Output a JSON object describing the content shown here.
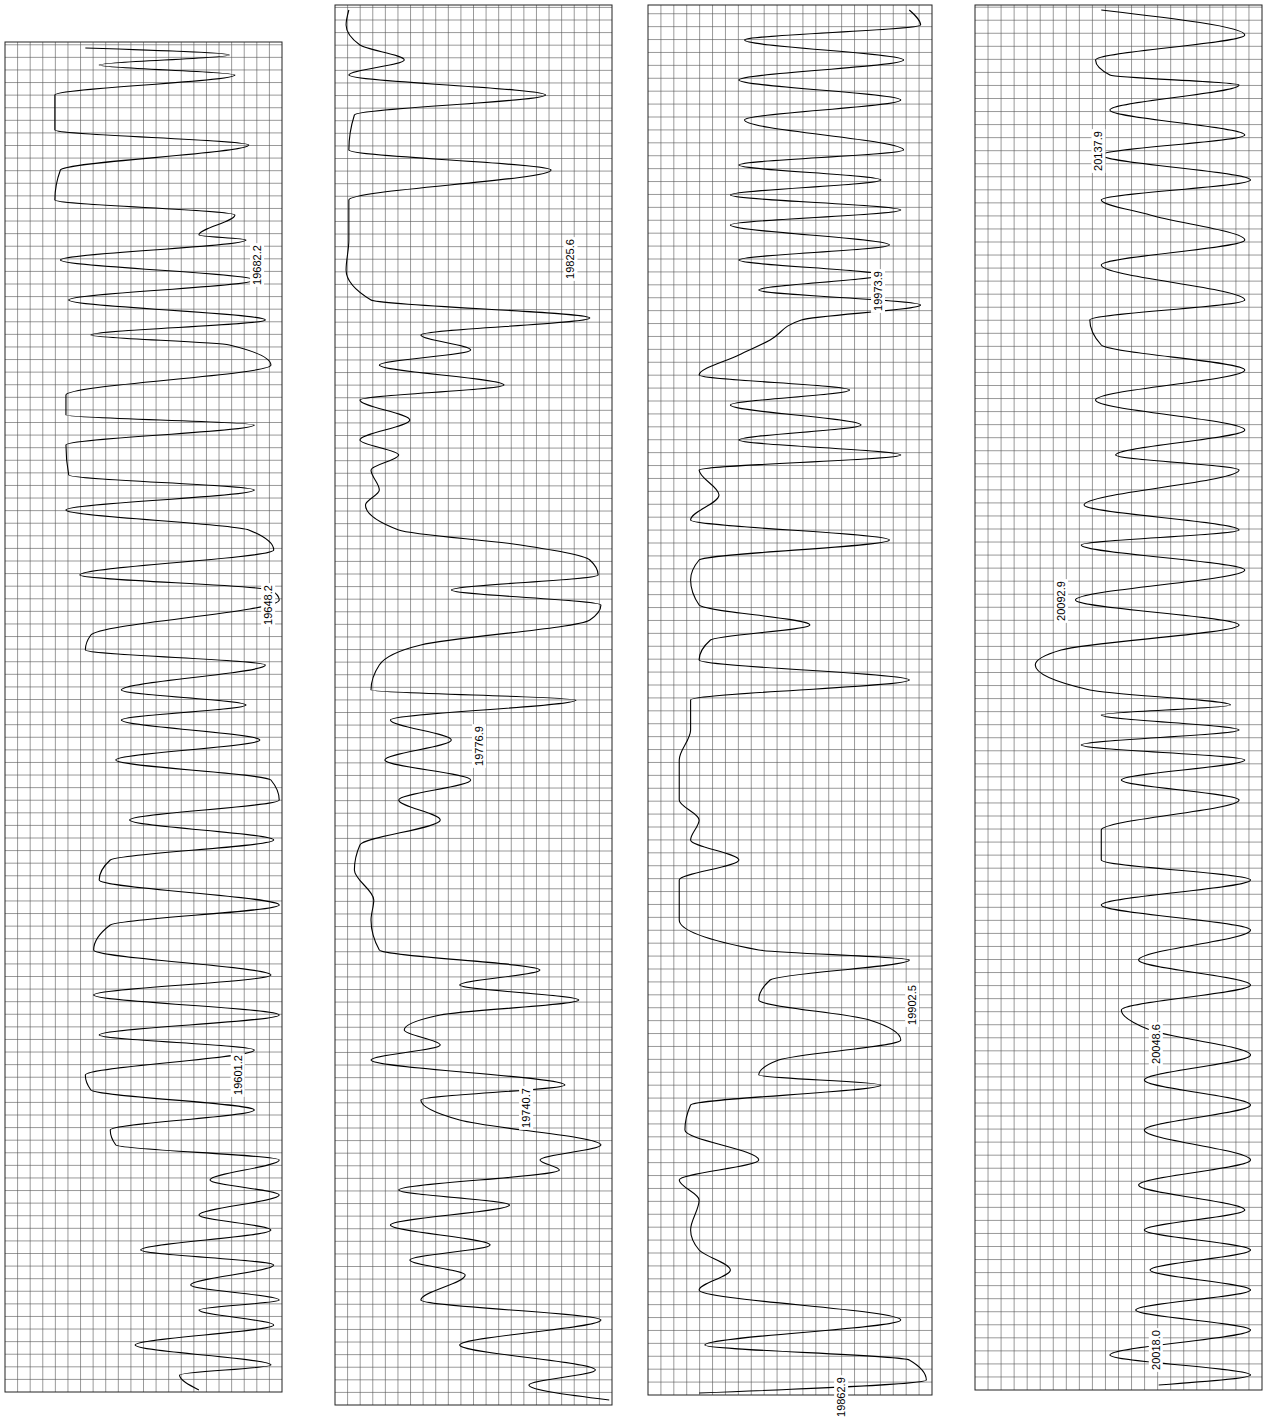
{
  "chart_data": [
    {
      "type": "line",
      "color": "#000000",
      "grid": true,
      "tick_labels": false,
      "xlim": [
        0,
        100
      ],
      "ylim": [
        19569.5,
        19704.5
      ],
      "x": [
        29,
        81,
        34,
        83,
        18,
        18,
        88,
        20,
        18,
        83,
        70,
        87,
        20,
        90,
        23,
        94,
        31,
        81,
        96,
        22,
        22,
        90,
        22,
        23,
        90,
        22,
        88,
        97,
        27,
        96,
        99,
        31,
        29,
        94,
        42,
        87,
        42,
        92,
        40,
        96,
        99,
        45,
        97,
        38,
        34,
        99,
        38,
        32,
        96,
        32,
        99,
        34,
        90,
        29,
        31,
        90,
        38,
        40,
        99,
        74,
        99,
        70,
        96,
        49,
        97,
        67,
        99,
        70,
        97,
        47,
        96,
        63,
        70
      ],
      "values": [
        19703.9,
        19703.2,
        19702.2,
        19701.2,
        19699.2,
        19695.7,
        19694.2,
        19691.7,
        19688.7,
        19687.2,
        19685.2,
        19684.7,
        19682.7,
        19680.7,
        19678.7,
        19676.7,
        19675.2,
        19674.2,
        19672.2,
        19669.2,
        19667.2,
        19666.2,
        19664.2,
        19661.2,
        19659.7,
        19657.7,
        19655.7,
        19653.7,
        19651.2,
        19649.7,
        19648.7,
        19645.2,
        19643.7,
        19642.2,
        19639.7,
        19638.2,
        19636.7,
        19634.7,
        19632.7,
        19630.7,
        19628.7,
        19626.7,
        19624.7,
        19622.7,
        19620.7,
        19618.2,
        19616.2,
        19613.7,
        19611.2,
        19609.2,
        19607.2,
        19605.2,
        19603.7,
        19601.2,
        19599.7,
        19597.7,
        19595.7,
        19594.2,
        19592.7,
        19590.7,
        19589.2,
        19587.2,
        19585.7,
        19583.7,
        19582.2,
        19580.2,
        19578.7,
        19577.7,
        19576.2,
        19574.2,
        19572.2,
        19571.2,
        19569.7
      ],
      "annotations": [
        {
          "value": 19682.2,
          "label": "19682.2"
        },
        {
          "value": 19648.2,
          "label": "19648.2"
        },
        {
          "value": 19601.2,
          "label": "19601.2"
        }
      ]
    },
    {
      "type": "line",
      "color": "#000000",
      "grid": true,
      "tick_labels": false,
      "xlim": [
        0,
        100
      ],
      "ylim": [
        19711,
        19851
      ],
      "x": [
        5,
        4,
        9,
        25,
        5,
        76,
        7,
        5,
        78,
        5,
        5,
        4,
        13,
        92,
        31,
        49,
        16,
        61,
        9,
        27,
        9,
        23,
        13,
        16,
        11,
        23,
        67,
        92,
        95,
        42,
        96,
        92,
        31,
        16,
        13,
        87,
        20,
        42,
        18,
        49,
        23,
        38,
        9,
        7,
        14,
        13,
        16,
        74,
        45,
        88,
        38,
        25,
        38,
        13,
        83,
        31,
        45,
        96,
        74,
        81,
        23,
        63,
        20,
        56,
        27,
        47,
        31,
        96,
        45,
        94,
        70,
        99
      ],
      "values": [
        19850.5,
        19849.0,
        19847.0,
        19845.5,
        19844.0,
        19842.0,
        19840.0,
        19836.5,
        19834.5,
        19831.5,
        19827.5,
        19824.5,
        19821.5,
        19819.7,
        19818.0,
        19816.5,
        19815.0,
        19813.0,
        19811.5,
        19809.5,
        19807.5,
        19806.0,
        19804.5,
        19802.5,
        19801.0,
        19798.5,
        19797.0,
        19795.5,
        19794.0,
        19792.5,
        19791.0,
        19789.5,
        19787.0,
        19785.0,
        19782.5,
        19781.5,
        19779.5,
        19777.5,
        19775.5,
        19773.5,
        19771.5,
        19769.5,
        19767.0,
        19764.5,
        19761.5,
        19759.5,
        19756.5,
        19754.5,
        19753.0,
        19751.5,
        19750.0,
        19748.5,
        19747.0,
        19745.5,
        19743.0,
        19741.5,
        19739.5,
        19737.0,
        19735.5,
        19734.5,
        19732.5,
        19731.0,
        19729.0,
        19727.0,
        19725.5,
        19724.0,
        19721.5,
        19719.5,
        19717.0,
        19714.5,
        19713.0,
        19711.5
      ],
      "annotations": [
        {
          "value": 19825.6,
          "label": "19825.6"
        },
        {
          "value": 19776.9,
          "label": "19776.9"
        },
        {
          "value": 19740.7,
          "label": "19740.7"
        }
      ]
    },
    {
      "type": "line",
      "color": "#000000",
      "grid": true,
      "tick_labels": false,
      "xlim": [
        0,
        100
      ],
      "ylim": [
        19863.5,
        20002.5
      ],
      "x": [
        92,
        96,
        34,
        90,
        32,
        89,
        34,
        90,
        32,
        82,
        29,
        89,
        29,
        85,
        32,
        82,
        39,
        96,
        54,
        43,
        32,
        18,
        71,
        29,
        75,
        32,
        89,
        18,
        25,
        15,
        85,
        18,
        15,
        18,
        57,
        22,
        18,
        92,
        15,
        15,
        11,
        11,
        18,
        15,
        32,
        11,
        11,
        39,
        92,
        43,
        39,
        78,
        89,
        46,
        39,
        82,
        15,
        13,
        39,
        11,
        18,
        15,
        18,
        29,
        18,
        89,
        20,
        92,
        98,
        18
      ],
      "values": [
        20002.0,
        20000.5,
        19999.0,
        19997.0,
        19995.0,
        19993.0,
        19991.0,
        19988.0,
        19986.5,
        19985.0,
        19983.5,
        19982.0,
        19980.5,
        19978.5,
        19977.0,
        19975.5,
        19974.0,
        19972.5,
        19971.0,
        19969.0,
        19967.5,
        19965.5,
        19964.0,
        19962.5,
        19960.5,
        19959.0,
        19957.5,
        19956.0,
        19953.5,
        19951.0,
        19949.0,
        19947.0,
        19945.0,
        19942.5,
        19940.5,
        19939.0,
        19937.0,
        19935.0,
        19933.0,
        19930.0,
        19927.0,
        19923.0,
        19921.0,
        19919.0,
        19917.0,
        19915.0,
        19911.0,
        19908.0,
        19907.0,
        19905.0,
        19903.0,
        19901.0,
        19899.0,
        19897.0,
        19895.5,
        19894.5,
        19892.5,
        19890.0,
        19887.0,
        19885.0,
        19883.0,
        19880.0,
        19878.0,
        19876.0,
        19874.0,
        19871.0,
        19868.5,
        19867.0,
        19865.0,
        19863.7
      ],
      "annotations": [
        {
          "value": 19973.9,
          "label": "19973.9"
        },
        {
          "value": 19902.5,
          "label": "19902.5"
        },
        {
          "value": 19862.9,
          "label": "19862.9"
        }
      ]
    },
    {
      "type": "line",
      "color": "#000000",
      "grid": true,
      "tick_labels": false,
      "xlim": [
        0,
        100
      ],
      "ylim": [
        20014,
        20152.5
      ],
      "x": [
        44,
        94,
        42,
        47,
        92,
        47,
        94,
        44,
        96,
        44,
        61,
        94,
        44,
        94,
        40,
        44,
        94,
        42,
        94,
        49,
        92,
        38,
        92,
        37,
        94,
        35,
        92,
        30,
        21,
        40,
        89,
        44,
        92,
        37,
        94,
        51,
        92,
        44,
        44,
        96,
        44,
        96,
        57,
        96,
        51,
        61,
        96,
        59,
        96,
        59,
        96,
        57,
        94,
        59,
        96,
        61,
        96,
        56,
        96,
        47,
        96,
        64
      ],
      "values": [
        20152.0,
        20149.5,
        20147.0,
        20145.5,
        20144.5,
        20142.0,
        20139.5,
        20137.5,
        20135.0,
        20133.0,
        20131.5,
        20129.0,
        20126.5,
        20123.0,
        20121.0,
        20118.5,
        20116.0,
        20113.0,
        20110.0,
        20107.5,
        20106.0,
        20102.5,
        20100.0,
        20098.5,
        20096.0,
        20093.0,
        20090.5,
        20088.0,
        20086.5,
        20084.0,
        20082.5,
        20081.5,
        20080.0,
        20078.5,
        20077.0,
        20075.0,
        20073.0,
        20070.0,
        20067.0,
        20065.0,
        20062.5,
        20060.0,
        20057.0,
        20054.5,
        20052.0,
        20050.0,
        20047.5,
        20045.0,
        20042.5,
        20040.0,
        20037.0,
        20034.5,
        20032.0,
        20030.0,
        20028.0,
        20026.0,
        20024.0,
        20022.0,
        20020.0,
        20017.5,
        20015.5,
        20014.5
      ],
      "annotations": [
        {
          "value": 20137.9,
          "label": "20137.9"
        },
        {
          "value": 20092.9,
          "label": "20092.9"
        },
        {
          "value": 20048.6,
          "label": "20048.6"
        },
        {
          "value": 20018.0,
          "label": "20018.0"
        }
      ]
    }
  ]
}
